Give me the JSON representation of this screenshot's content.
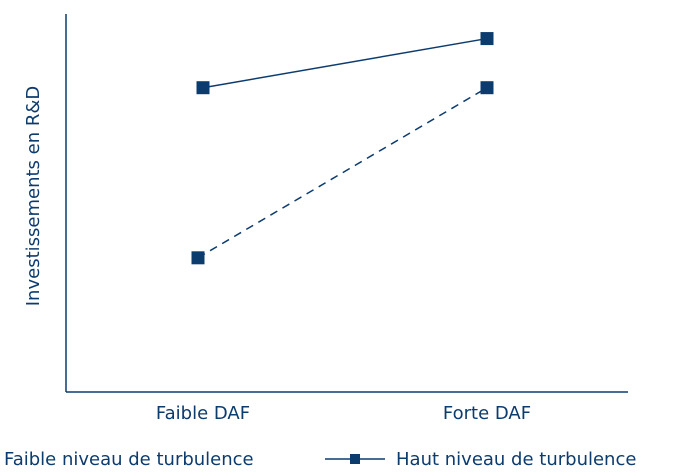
{
  "chart_data": {
    "type": "line",
    "categories": [
      "Faible DAF",
      "Forte DAF"
    ],
    "ylabel": "Investissements en R&D",
    "xlabel": "",
    "ylim": [
      0,
      100
    ],
    "series": [
      {
        "name": "Faible niveau de turbulence",
        "values": [
          35.5,
          80.5
        ],
        "line_style": "dashed",
        "marker": "square"
      },
      {
        "name": "Haut niveau de turbulence",
        "values": [
          80.5,
          93.5
        ],
        "line_style": "solid",
        "marker": "square"
      }
    ],
    "grid": false,
    "legend_position": "bottom",
    "colors": {
      "series": "#0c3b6e",
      "axis": "#0c3b6e"
    }
  }
}
